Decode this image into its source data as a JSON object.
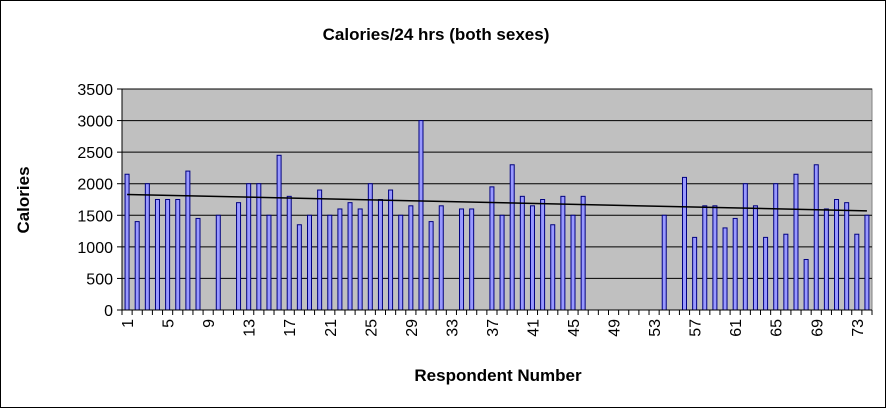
{
  "chart_data": {
    "type": "bar",
    "title": "Calories/24 hrs (both sexes)",
    "xlabel": "Respondent Number",
    "ylabel": "Calories",
    "ylim": [
      0,
      3500
    ],
    "y_ticks": [
      0,
      500,
      1000,
      1500,
      2000,
      2500,
      3000,
      3500
    ],
    "x_tick_labels": [
      "1",
      "5",
      "9",
      "13",
      "17",
      "21",
      "25",
      "29",
      "33",
      "37",
      "41",
      "45",
      "49",
      "53",
      "57",
      "61",
      "65",
      "69",
      "73"
    ],
    "categories": [
      1,
      2,
      3,
      4,
      5,
      6,
      7,
      8,
      9,
      10,
      11,
      12,
      13,
      14,
      15,
      16,
      17,
      18,
      19,
      20,
      21,
      22,
      23,
      24,
      25,
      26,
      27,
      28,
      29,
      30,
      31,
      32,
      33,
      34,
      35,
      36,
      37,
      38,
      39,
      40,
      41,
      42,
      43,
      44,
      45,
      46,
      47,
      48,
      49,
      50,
      51,
      52,
      53,
      54,
      55,
      56,
      57,
      58,
      59,
      60,
      61,
      62,
      63,
      64,
      65,
      66,
      67,
      68,
      69,
      70,
      71,
      72,
      73,
      74
    ],
    "values": [
      2150,
      1400,
      2000,
      1750,
      1750,
      1750,
      2200,
      1450,
      null,
      1500,
      null,
      1700,
      2000,
      2000,
      1500,
      2450,
      1800,
      1350,
      1500,
      1900,
      1500,
      1600,
      1700,
      1600,
      2000,
      1750,
      1900,
      1500,
      1650,
      3000,
      1400,
      1650,
      null,
      1600,
      1600,
      null,
      1950,
      1500,
      2300,
      1800,
      1650,
      1750,
      1350,
      1800,
      1500,
      1800,
      null,
      null,
      null,
      null,
      null,
      null,
      null,
      1500,
      null,
      2100,
      1150,
      1650,
      1650,
      1300,
      1450,
      2000,
      1650,
      1150,
      2000,
      1200,
      2150,
      800,
      2300,
      1600,
      1750,
      1700,
      1200,
      1500
    ],
    "trendline": {
      "type": "linear",
      "start_value": 1830,
      "end_value": 1570
    },
    "bar_color": "#9999FF",
    "bar_outline": "#000080",
    "plot_background": "#C0C0C0",
    "gridlines": true,
    "legend": "none"
  }
}
